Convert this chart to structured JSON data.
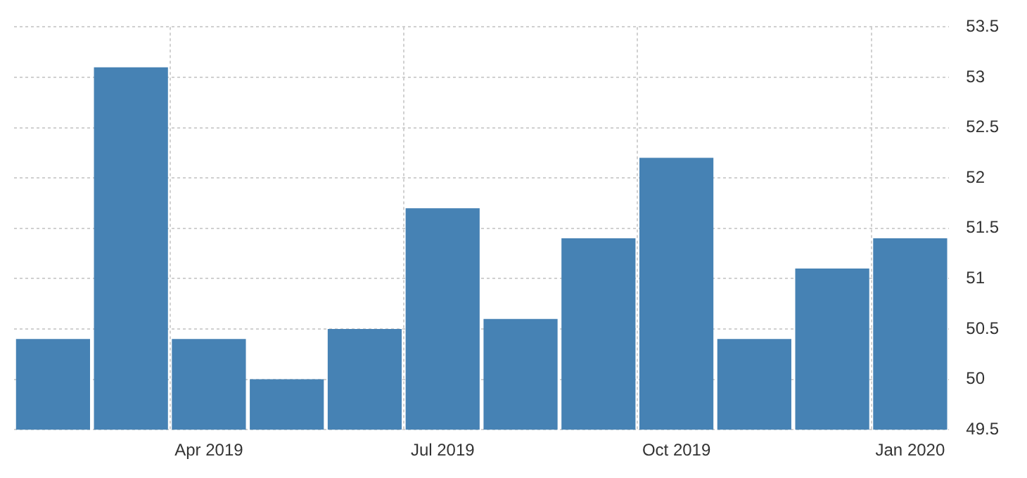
{
  "chart_data": {
    "type": "bar",
    "categories": [
      null,
      null,
      "Apr 2019",
      null,
      null,
      "Jul 2019",
      null,
      null,
      "Oct 2019",
      null,
      null,
      "Jan 2020"
    ],
    "values": [
      50.4,
      53.1,
      50.4,
      50.0,
      50.5,
      51.7,
      50.6,
      51.4,
      52.2,
      50.4,
      51.1,
      51.4
    ],
    "color": "#4682b4",
    "ylim": [
      49.5,
      53.5
    ],
    "yticks": [
      49.5,
      50,
      50.5,
      51,
      51.5,
      52,
      52.5,
      53,
      53.5
    ],
    "grid": true,
    "legend": false
  }
}
